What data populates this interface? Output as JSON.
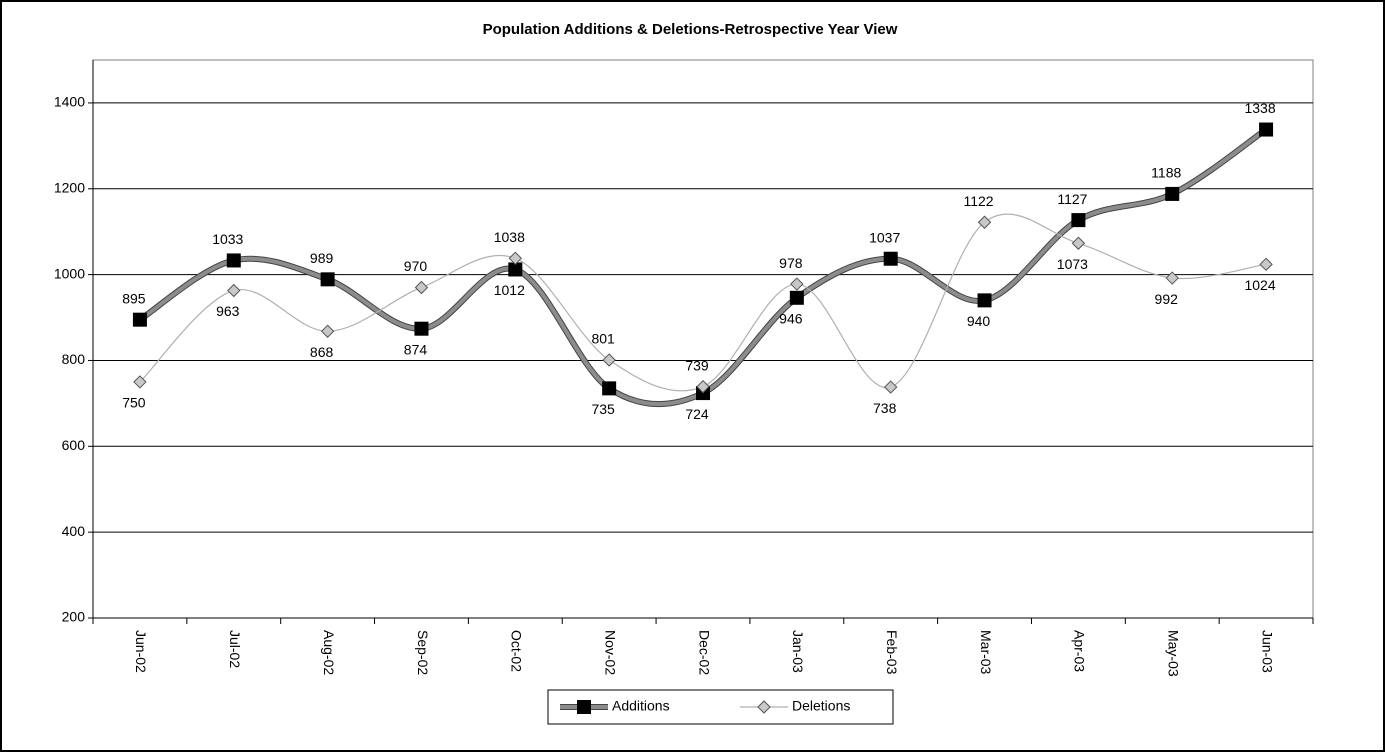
{
  "chart_data": {
    "type": "line",
    "title": "Population Additions & Deletions-Retrospective Year View",
    "categories": [
      "Jun-02",
      "Jul-02",
      "Aug-02",
      "Sep-02",
      "Oct-02",
      "Nov-02",
      "Dec-02",
      "Jan-03",
      "Feb-03",
      "Mar-03",
      "Apr-03",
      "May-03",
      "Jun-03"
    ],
    "series": [
      {
        "name": "Additions",
        "color": "#8c8c8c",
        "marker": "square",
        "values": [
          895,
          1033,
          989,
          874,
          1012,
          735,
          724,
          946,
          1037,
          940,
          1127,
          1188,
          1338
        ]
      },
      {
        "name": "Deletions",
        "color": "#b0b0b0",
        "marker": "diamond",
        "values": [
          750,
          963,
          868,
          970,
          1038,
          801,
          739,
          978,
          738,
          1122,
          1073,
          992,
          1024
        ]
      }
    ],
    "ylim": [
      200,
      1500
    ],
    "yticks": [
      200,
      400,
      600,
      800,
      1000,
      1200,
      1400
    ],
    "grid": true,
    "smooth": true,
    "legend": "bottom"
  }
}
